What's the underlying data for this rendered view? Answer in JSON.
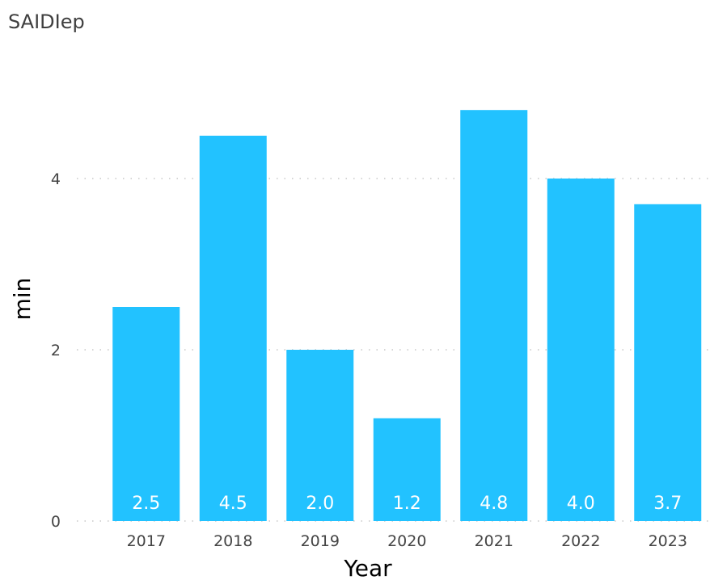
{
  "chart_data": {
    "type": "bar",
    "title": "SAIDIep",
    "xlabel": "Year",
    "ylabel": "min",
    "categories": [
      "2017",
      "2018",
      "2019",
      "2020",
      "2021",
      "2022",
      "2023"
    ],
    "values": [
      2.5,
      4.5,
      2.0,
      1.2,
      4.8,
      4.0,
      3.7
    ],
    "data_labels": [
      "2.5",
      "4.5",
      "2.0",
      "1.2",
      "4.8",
      "4.0",
      "3.7"
    ],
    "ylim": [
      0,
      5.4
    ],
    "yticks": [
      0,
      2,
      4
    ],
    "grid": true,
    "legend": "none",
    "colors": {
      "bar": "#22C2FF",
      "data_label": "#FFFFFF",
      "gridline": "#C8C8C8",
      "tick_label": "#444444",
      "title": "#3F3F3F"
    }
  }
}
